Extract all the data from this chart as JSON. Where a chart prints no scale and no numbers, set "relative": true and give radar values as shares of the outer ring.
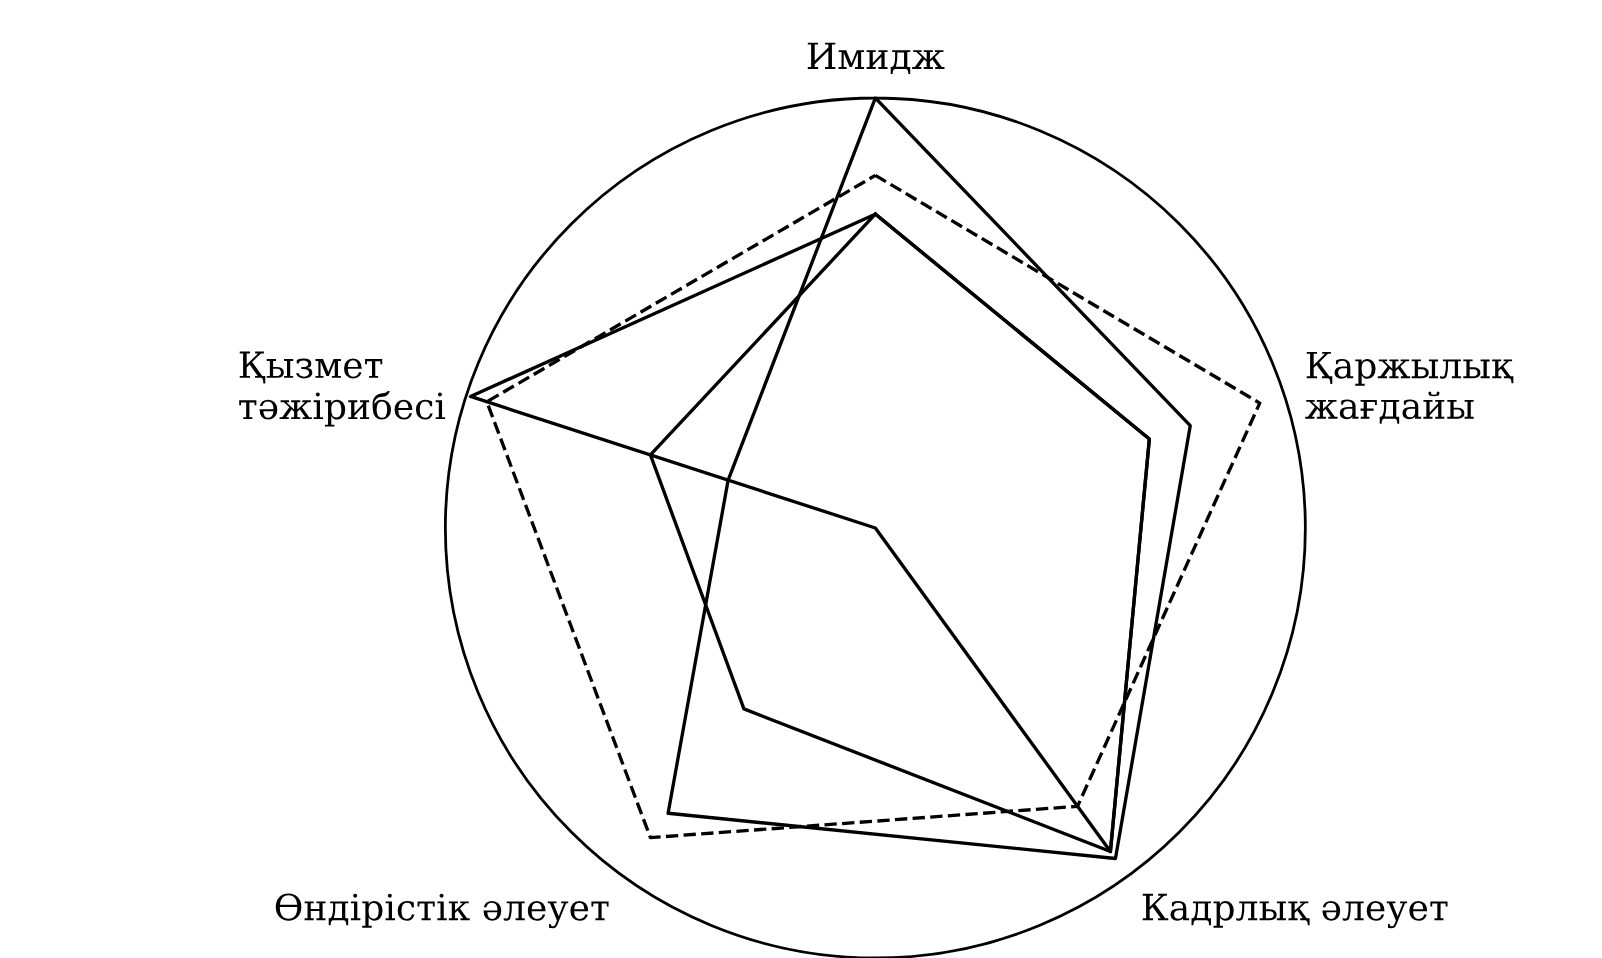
{
  "chart_data": {
    "type": "radar",
    "relative": true,
    "categories": [
      "Имидж",
      "Қаржылық\nжағдайы",
      "Кадрлық әлеует",
      "Өндірістік әлеует",
      "Қызмет\nтәжірибесі"
    ],
    "series": [
      {
        "color": "#000000",
        "line_style": "solid",
        "values": [
          1.0,
          0.77,
          0.95,
          0.82,
          0.36
        ]
      },
      {
        "color": "#000000",
        "line_style": "dashed",
        "values": [
          0.82,
          0.94,
          0.8,
          0.89,
          0.95
        ]
      },
      {
        "color": "#000000",
        "line_style": "solid",
        "values": [
          0.73,
          0.67,
          0.93,
          0.52,
          0.55
        ]
      },
      {
        "color": "#000000",
        "line_style": "solid",
        "values": [
          0.73,
          0.67,
          0.93,
          0.0,
          0.99
        ]
      }
    ],
    "grid": false,
    "legend": false
  }
}
